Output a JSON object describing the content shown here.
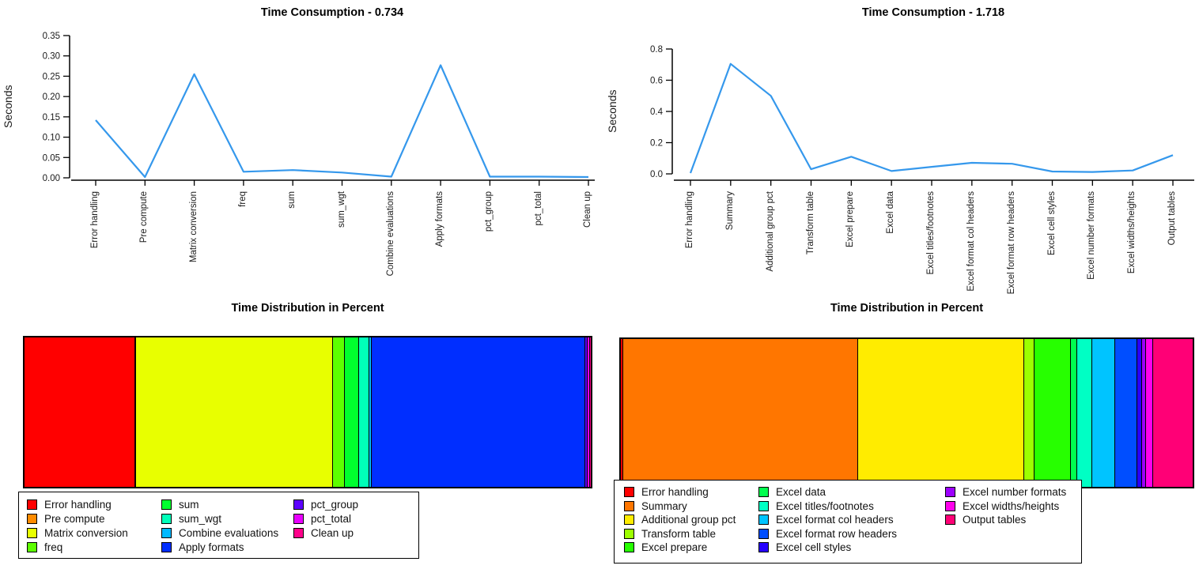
{
  "chart_data": [
    {
      "type": "line",
      "title": "Time Consumption - 0.734",
      "ylabel": "Seconds",
      "ylim": [
        0,
        0.35
      ],
      "ytick_values": [
        0,
        0.05,
        0.1,
        0.15,
        0.2,
        0.25,
        0.3,
        0.35
      ],
      "ytick_labels": [
        "0.00",
        "0.05",
        "0.10",
        "0.15",
        "0.20",
        "0.25",
        "0.30",
        "0.35"
      ],
      "line_color": "#3598EC",
      "categories": [
        "Error handling",
        "Pre compute",
        "Matrix conversion",
        "freq",
        "sum",
        "sum_wgt",
        "Combine evaluations",
        "Apply formats",
        "pct_group",
        "pct_total",
        "Clean up"
      ],
      "values": [
        0.142,
        0.002,
        0.255,
        0.015,
        0.019,
        0.013,
        0.003,
        0.277,
        0.003,
        0.003,
        0.002
      ]
    },
    {
      "type": "line",
      "title": "Time Consumption - 1.718",
      "ylabel": "Seconds",
      "ylim": [
        0,
        0.8
      ],
      "ytick_values": [
        0,
        0.2,
        0.4,
        0.6,
        0.8
      ],
      "ytick_labels": [
        "0.0",
        "0.2",
        "0.4",
        "0.6",
        "0.8"
      ],
      "line_color": "#3598EC",
      "categories": [
        "Error handling",
        "Summary",
        "Additional group pct",
        "Transform table",
        "Excel prepare",
        "Excel data",
        "Excel titles/footnotes",
        "Excel format col headers",
        "Excel format row headers",
        "Excel cell styles",
        "Excel number formats",
        "Excel widths/heights",
        "Output tables"
      ],
      "values": [
        0.005,
        0.705,
        0.5,
        0.03,
        0.11,
        0.018,
        0.045,
        0.071,
        0.065,
        0.015,
        0.012,
        0.022,
        0.12
      ]
    },
    {
      "type": "stacked_bar",
      "title": "Time Distribution in Percent",
      "categories": [
        "Error handling",
        "Pre compute",
        "Matrix conversion",
        "freq",
        "sum",
        "sum_wgt",
        "Combine evaluations",
        "Apply formats",
        "pct_group",
        "pct_total",
        "Clean up"
      ],
      "values": [
        0.142,
        0.002,
        0.255,
        0.015,
        0.019,
        0.013,
        0.003,
        0.277,
        0.003,
        0.003,
        0.002
      ],
      "colors": [
        "#FF0000",
        "#FF8B00",
        "#E8FF00",
        "#5DFF00",
        "#00FF2E",
        "#00FFB9",
        "#00B9FF",
        "#002EFF",
        "#5D00FF",
        "#E800FF",
        "#FF008B"
      ],
      "legend_columns": [
        4,
        4,
        3
      ]
    },
    {
      "type": "stacked_bar",
      "title": "Time Distribution in Percent",
      "categories": [
        "Error handling",
        "Summary",
        "Additional group pct",
        "Transform table",
        "Excel prepare",
        "Excel data",
        "Excel titles/footnotes",
        "Excel format col headers",
        "Excel format row headers",
        "Excel cell styles",
        "Excel number formats",
        "Excel widths/heights",
        "Output tables"
      ],
      "values": [
        0.005,
        0.705,
        0.5,
        0.03,
        0.11,
        0.018,
        0.045,
        0.071,
        0.065,
        0.015,
        0.012,
        0.022,
        0.12
      ],
      "colors": [
        "#FF0000",
        "#FF7600",
        "#FFEC00",
        "#9DFF00",
        "#27FF00",
        "#00FF4E",
        "#00FFC4",
        "#00C4FF",
        "#004EFF",
        "#2700FF",
        "#9D00FF",
        "#FF00EC",
        "#FF0076"
      ],
      "legend_columns": [
        5,
        5,
        3
      ]
    }
  ]
}
